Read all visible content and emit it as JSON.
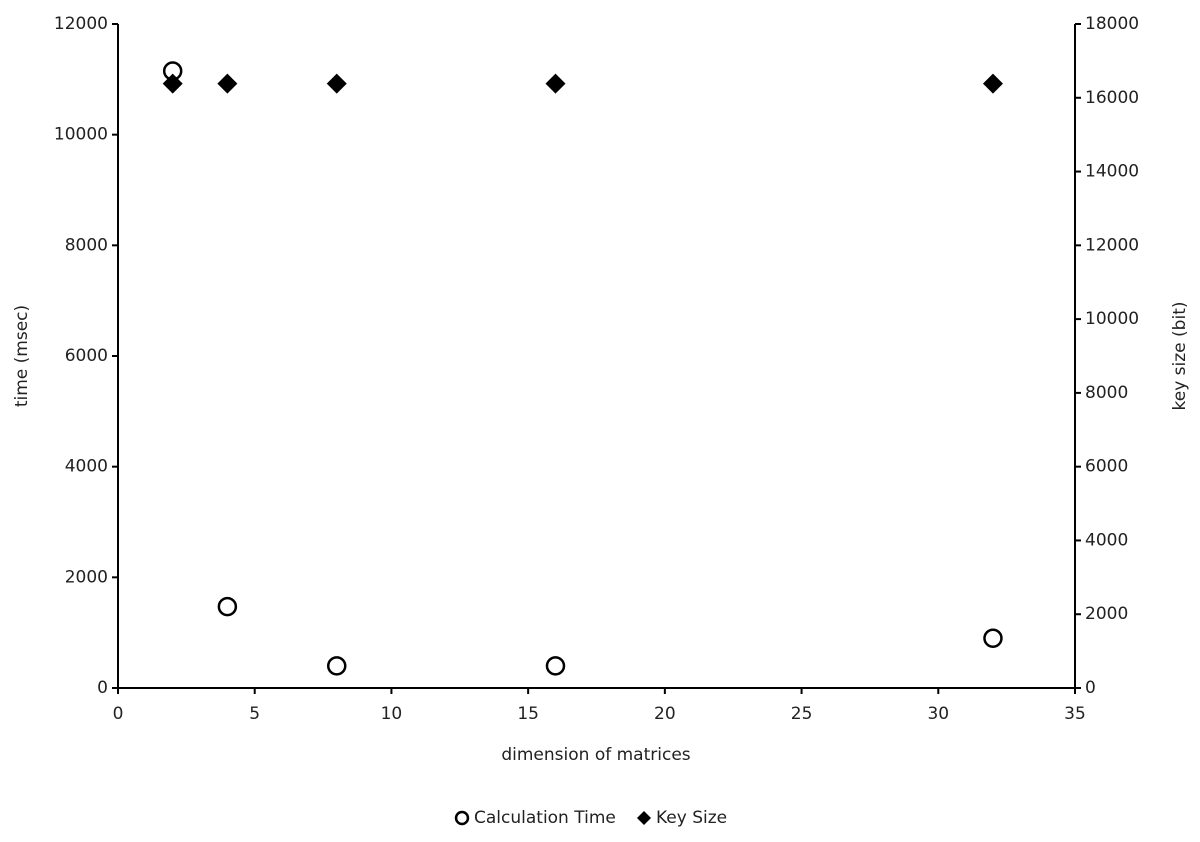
{
  "chart_data": {
    "type": "scatter",
    "x_label": "dimension  of matrices",
    "y_label": "time (msec)",
    "y2_label": "key size (bit)",
    "xlim": [
      0,
      35
    ],
    "xticks": [
      0,
      5,
      10,
      15,
      20,
      25,
      30,
      35
    ],
    "ylim": [
      0,
      12000
    ],
    "yticks": [
      0,
      2000,
      4000,
      6000,
      8000,
      10000,
      12000
    ],
    "y2lim": [
      0,
      18000
    ],
    "y2ticks": [
      0,
      2000,
      4000,
      6000,
      8000,
      10000,
      12000,
      14000,
      16000,
      18000
    ],
    "grid": false,
    "legend": "bottom",
    "series": [
      {
        "name": "Calculation Time",
        "color": "#000000",
        "marker": "circle",
        "x": [
          2,
          4,
          8,
          16,
          32
        ],
        "values": [
          11150,
          1470,
          400,
          400,
          900
        ]
      },
      {
        "name": "Key Size",
        "color": "#000000",
        "marker": "diamond",
        "axis": "y2",
        "x": [
          2,
          4,
          8,
          16,
          32
        ],
        "values": [
          16384,
          16384,
          16384,
          16384,
          16384
        ]
      }
    ]
  }
}
